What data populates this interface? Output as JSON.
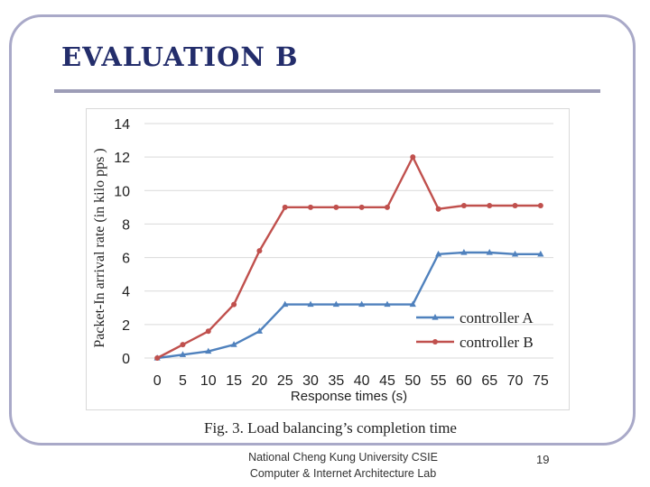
{
  "slide": {
    "title": "EVALUATION B",
    "caption": "Fig. 3.  Load balancing’s completion time",
    "footer_line1": "National Cheng Kung University CSIE",
    "footer_line2": "Computer & Internet Architecture Lab",
    "page_number": "19"
  },
  "chart_data": {
    "type": "line",
    "xlabel": "Response times (s)",
    "ylabel": "Packet-In arrival rate (in kilo pps )",
    "x": [
      0,
      5,
      10,
      15,
      20,
      25,
      30,
      35,
      40,
      45,
      50,
      55,
      60,
      65,
      70,
      75
    ],
    "xlim": [
      0,
      75
    ],
    "ylim": [
      0,
      14
    ],
    "yticks": [
      0,
      2,
      4,
      6,
      8,
      10,
      12,
      14
    ],
    "grid": "horizontal",
    "legend_position": "bottom-right",
    "series": [
      {
        "name": "controller A",
        "color": "#4f81bd",
        "marker": "triangle",
        "values": [
          0,
          0.2,
          0.4,
          0.8,
          1.6,
          3.2,
          3.2,
          3.2,
          3.2,
          3.2,
          3.2,
          6.2,
          6.3,
          6.3,
          6.2,
          6.2
        ]
      },
      {
        "name": "controller B",
        "color": "#c0504d",
        "marker": "circle",
        "values": [
          0,
          0.8,
          1.6,
          3.2,
          6.4,
          9.0,
          9.0,
          9.0,
          9.0,
          9.0,
          12.0,
          8.9,
          9.1,
          9.1,
          9.1,
          9.1
        ]
      }
    ]
  }
}
